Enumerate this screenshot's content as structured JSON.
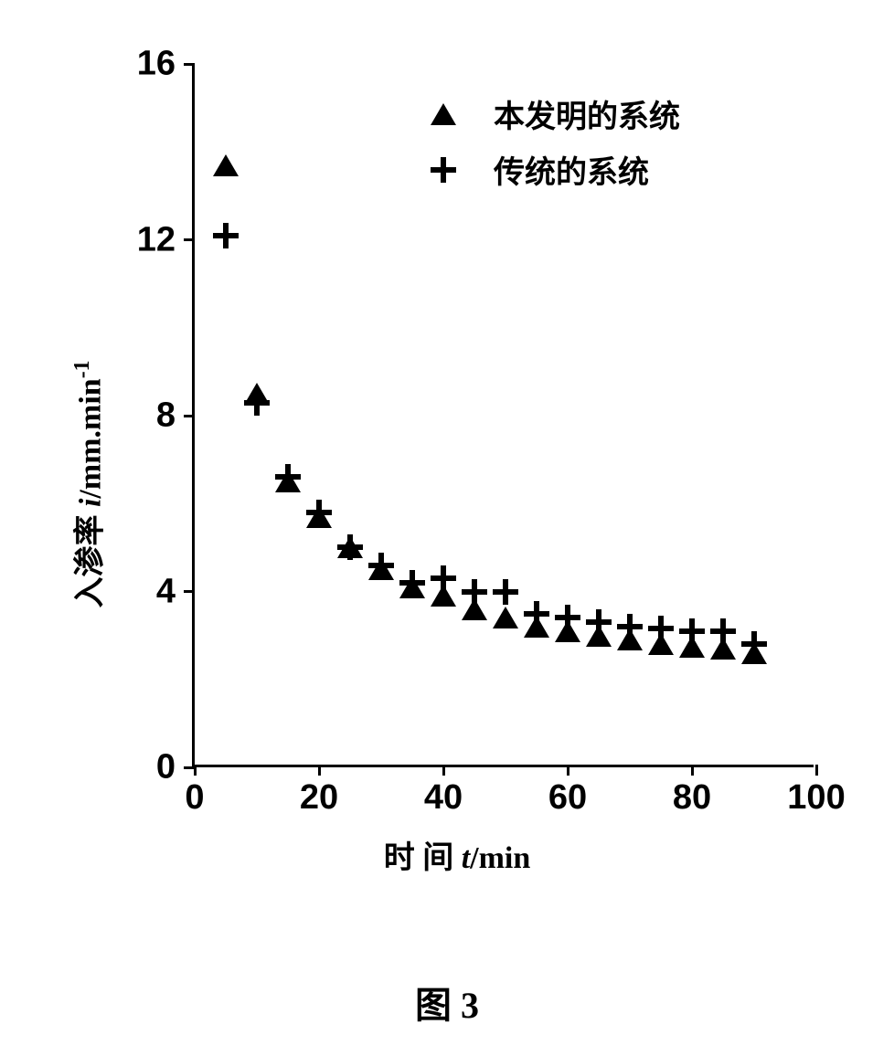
{
  "chart": {
    "type": "scatter",
    "xlim": [
      0,
      100
    ],
    "ylim": [
      0,
      16
    ],
    "xtick_step": 20,
    "ytick_step": 4,
    "x_ticks": [
      0,
      20,
      40,
      60,
      80,
      100
    ],
    "y_ticks": [
      0,
      4,
      8,
      12,
      16
    ],
    "x_axis_title_prefix": "时 间 ",
    "x_axis_title_var": "t",
    "x_axis_title_unit": "/min",
    "y_axis_title_prefix": "入渗率 ",
    "y_axis_title_var": "i",
    "y_axis_title_unit": "/mm.min",
    "y_axis_title_exp": "-1",
    "background_color": "#ffffff",
    "axis_color": "#000000",
    "text_color": "#000000",
    "axis_fontsize": 38,
    "title_fontsize": 34,
    "legend_fontsize": 34,
    "marker_size_triangle": 24,
    "marker_size_plus": 28,
    "series": [
      {
        "name": "series1",
        "label": "本发明的系统",
        "marker": "triangle",
        "color": "#000000",
        "data": [
          {
            "x": 5,
            "y": 13.7
          },
          {
            "x": 10,
            "y": 8.5
          },
          {
            "x": 15,
            "y": 6.5
          },
          {
            "x": 20,
            "y": 5.7
          },
          {
            "x": 25,
            "y": 5.0
          },
          {
            "x": 30,
            "y": 4.5
          },
          {
            "x": 35,
            "y": 4.1
          },
          {
            "x": 40,
            "y": 3.9
          },
          {
            "x": 45,
            "y": 3.6
          },
          {
            "x": 50,
            "y": 3.4
          },
          {
            "x": 55,
            "y": 3.2
          },
          {
            "x": 60,
            "y": 3.1
          },
          {
            "x": 65,
            "y": 3.0
          },
          {
            "x": 70,
            "y": 2.9
          },
          {
            "x": 75,
            "y": 2.8
          },
          {
            "x": 80,
            "y": 2.75
          },
          {
            "x": 85,
            "y": 2.7
          },
          {
            "x": 90,
            "y": 2.6
          }
        ]
      },
      {
        "name": "series2",
        "label": "传统的系统",
        "marker": "plus",
        "color": "#000000",
        "data": [
          {
            "x": 5,
            "y": 12.1
          },
          {
            "x": 10,
            "y": 8.3
          },
          {
            "x": 15,
            "y": 6.6
          },
          {
            "x": 20,
            "y": 5.8
          },
          {
            "x": 25,
            "y": 5.0
          },
          {
            "x": 30,
            "y": 4.6
          },
          {
            "x": 35,
            "y": 4.2
          },
          {
            "x": 40,
            "y": 4.3
          },
          {
            "x": 45,
            "y": 4.0
          },
          {
            "x": 50,
            "y": 4.0
          },
          {
            "x": 55,
            "y": 3.5
          },
          {
            "x": 60,
            "y": 3.4
          },
          {
            "x": 65,
            "y": 3.3
          },
          {
            "x": 70,
            "y": 3.2
          },
          {
            "x": 75,
            "y": 3.15
          },
          {
            "x": 80,
            "y": 3.1
          },
          {
            "x": 85,
            "y": 3.1
          },
          {
            "x": 90,
            "y": 2.8
          }
        ]
      }
    ]
  },
  "figure_caption": "图 3"
}
